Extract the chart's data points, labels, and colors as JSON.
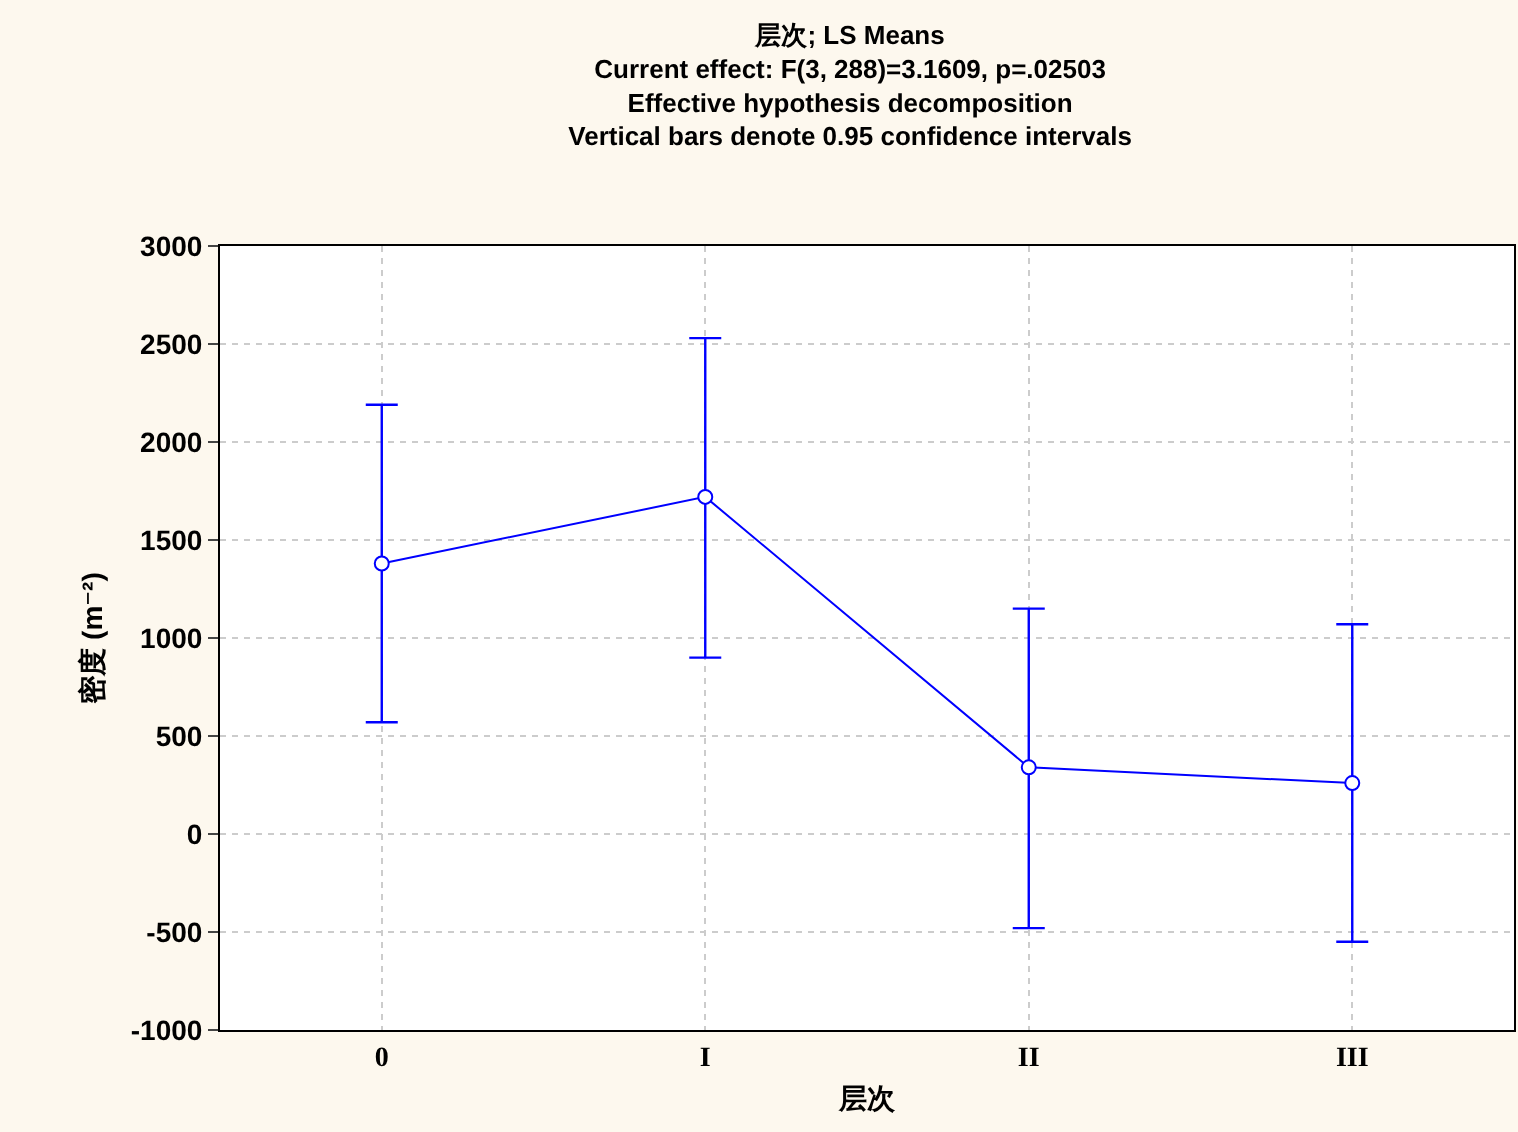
{
  "chart_data": {
    "type": "line",
    "title": "层次; LS Means",
    "subtitle": "Current effect: F(3, 288)=3.1609, p=.02503\nEffective hypothesis decomposition\nVertical bars denote 0.95 confidence intervals",
    "xlabel": "层次",
    "ylabel": "密度 (m⁻²)",
    "categories": [
      "0",
      "I",
      "II",
      "III"
    ],
    "series": [
      {
        "color": "#0000ff",
        "values": [
          1380,
          1720,
          340,
          260
        ],
        "errors": [
          [
            570,
            2190
          ],
          [
            900,
            2530
          ],
          [
            -480,
            1150
          ],
          [
            -550,
            1070
          ]
        ]
      }
    ],
    "ylim": [
      -1000,
      3000
    ],
    "yticks": [
      -1000,
      -500,
      0,
      500,
      1000,
      1500,
      2000,
      2500,
      3000
    ],
    "grid": true,
    "marker": "circle",
    "line_style": "solid"
  }
}
